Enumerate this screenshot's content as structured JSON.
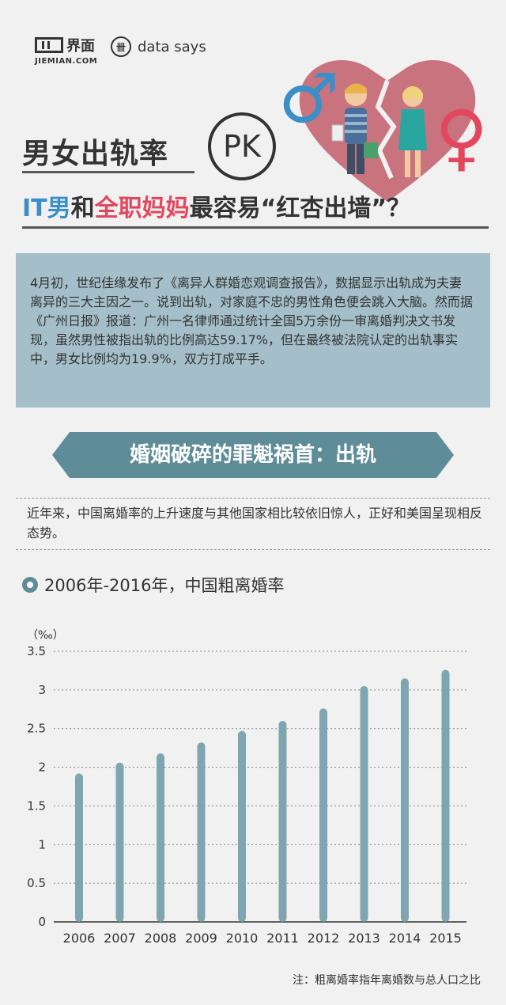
{
  "brand": {
    "logo_cn": "界面",
    "logo_en": "JIEMIAN.COM",
    "ds_mark": "卌",
    "ds_text": "data says"
  },
  "header": {
    "title1": "男女出轨率",
    "pk": "PK",
    "title2_part1": "IT男",
    "title2_part2": "和",
    "title2_part3": "全职妈妈",
    "title2_part4": "最容易“红杏出墙”？",
    "male_symbol": "♂",
    "female_symbol": "♀"
  },
  "intro": {
    "text": "4月初，世纪佳缘发布了《离异人群婚恋观调查报告》，数据显示出轨成为夫妻离异的三大主因之一。说到出轨，对家庭不忠的男性角色便会跳入大脑。然而据《广州日报》报道：广州一名律师通过统计全国5万余份一审离婚判决文书发现，虽然男性被指出轨的比例高达59.17%，但在最终被法院认定的出轨事实中，男女比例均为19.9%，双方打成平手。"
  },
  "banner": {
    "text": "婚姻破碎的罪魁祸首：出轨"
  },
  "subnote": {
    "text": "近年来，中国离婚率的上升速度与其他国家相比较依旧惊人，正好和美国呈现相反态势。"
  },
  "chart_title": "2006年-2016年，中国粗离婚率",
  "footnote": "注：粗离婚率指年离婚数与总人口之比",
  "colors": {
    "background": "#f1f1f1",
    "bar": "#7fa5b1",
    "intro_bg": "#a4bfc9",
    "banner": "#5e8d99",
    "blue_accent": "#3a8fc6",
    "red_accent": "#e2485d",
    "heart": "#c9737f"
  },
  "chart_data": {
    "type": "bar",
    "title": "2006年-2016年，中国粗离婚率",
    "unit_label": "（‰）",
    "categories": [
      "2006",
      "2007",
      "2008",
      "2009",
      "2010",
      "2011",
      "2012",
      "2013",
      "2014",
      "2015"
    ],
    "values": [
      1.92,
      2.06,
      2.18,
      2.32,
      2.47,
      2.6,
      2.76,
      3.05,
      3.15,
      3.26
    ],
    "yticks": [
      "0",
      "0.5",
      "1",
      "1.5",
      "2",
      "2.5",
      "3",
      "3.5"
    ],
    "ylim": [
      0,
      3.5
    ],
    "grid": true
  }
}
